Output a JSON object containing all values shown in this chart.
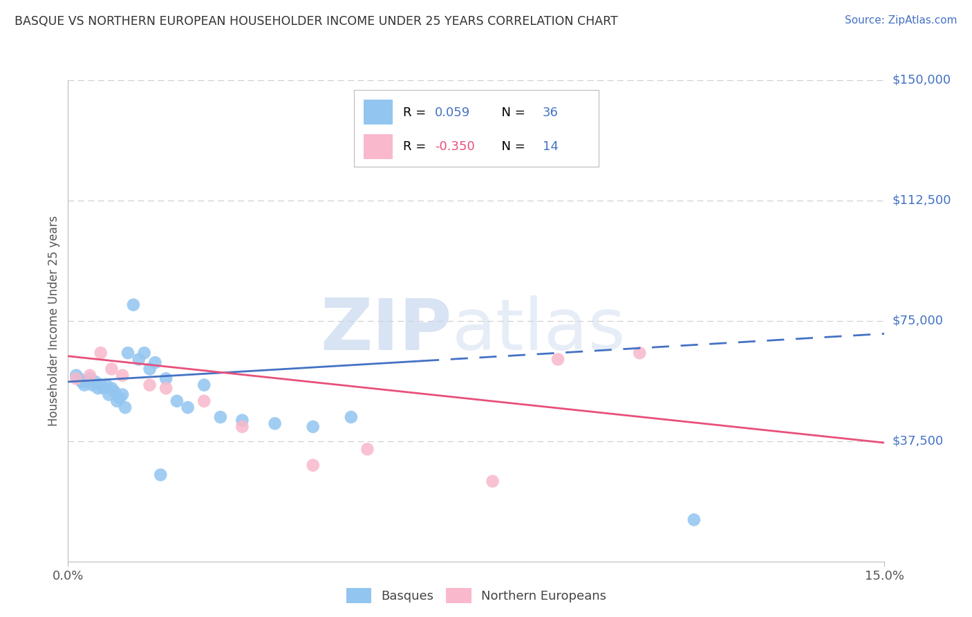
{
  "title": "BASQUE VS NORTHERN EUROPEAN HOUSEHOLDER INCOME UNDER 25 YEARS CORRELATION CHART",
  "source": "Source: ZipAtlas.com",
  "ylabel": "Householder Income Under 25 years",
  "x_min": 0.0,
  "x_max": 15.0,
  "y_min": 0,
  "y_max": 150000,
  "yticks": [
    0,
    37500,
    75000,
    112500,
    150000
  ],
  "ytick_labels": [
    "",
    "$37,500",
    "$75,000",
    "$112,500",
    "$150,000"
  ],
  "xtick_labels": [
    "0.0%",
    "15.0%"
  ],
  "watermark_zip": "ZIP",
  "watermark_atlas": "atlas",
  "blue_R": "0.059",
  "blue_N": "36",
  "pink_R": "-0.350",
  "pink_N": "14",
  "blue_dot_color": "#92C5F0",
  "pink_dot_color": "#F9B8CB",
  "blue_line_color": "#4472C4",
  "pink_line_color": "#E8507A",
  "legend_label_blue": "Basques",
  "legend_label_pink": "Northern Europeans",
  "grid_color": "#CCCCCC",
  "spine_color": "#BBBBBB",
  "blue_x": [
    0.15,
    0.2,
    0.25,
    0.3,
    0.35,
    0.4,
    0.45,
    0.5,
    0.55,
    0.6,
    0.65,
    0.7,
    0.75,
    0.8,
    0.85,
    0.9,
    0.95,
    1.0,
    1.05,
    1.1,
    1.2,
    1.3,
    1.4,
    1.5,
    1.6,
    1.8,
    2.0,
    2.2,
    2.5,
    2.8,
    3.2,
    3.8,
    4.5,
    5.2,
    1.7,
    11.5
  ],
  "blue_y": [
    58000,
    57000,
    56000,
    55000,
    56000,
    57000,
    55000,
    56000,
    54000,
    55000,
    54000,
    55000,
    52000,
    54000,
    53000,
    50000,
    51000,
    52000,
    48000,
    65000,
    80000,
    63000,
    65000,
    60000,
    62000,
    57000,
    50000,
    48000,
    55000,
    45000,
    44000,
    43000,
    42000,
    45000,
    27000,
    13000
  ],
  "pink_x": [
    0.15,
    0.4,
    0.6,
    0.8,
    1.0,
    1.5,
    1.8,
    2.5,
    3.2,
    4.5,
    5.5,
    7.8,
    9.0,
    10.5
  ],
  "pink_y": [
    57000,
    58000,
    65000,
    60000,
    58000,
    55000,
    54000,
    50000,
    42000,
    30000,
    35000,
    25000,
    63000,
    65000
  ],
  "blue_trend_x0": 0.0,
  "blue_trend_y0": 56000,
  "blue_trend_x1": 15.0,
  "blue_trend_y1": 71000,
  "blue_dash_start": 6.5,
  "pink_trend_x0": 0.0,
  "pink_trend_y0": 64000,
  "pink_trend_x1": 15.0,
  "pink_trend_y1": 37000
}
